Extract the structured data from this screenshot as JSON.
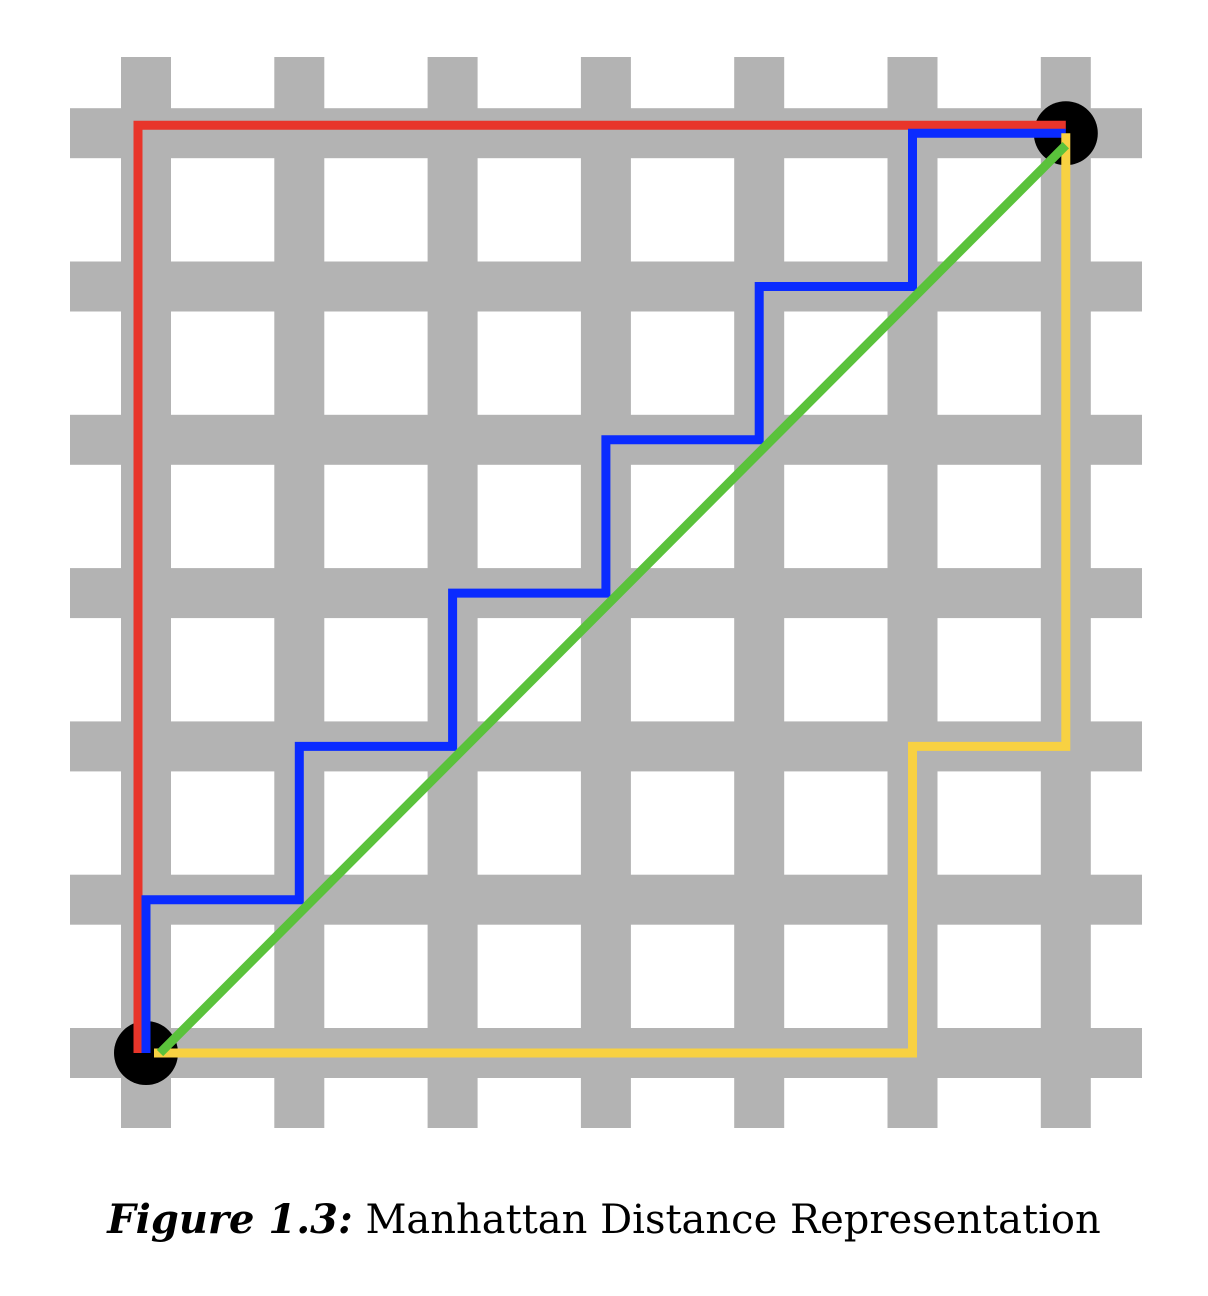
{
  "grid": {
    "lines": 7,
    "street_color": "#b3b3b3",
    "block_color": "#ffffff"
  },
  "endpoints": [
    {
      "name": "start",
      "col": 0,
      "row": 0
    },
    {
      "name": "end",
      "col": 6,
      "row": 6
    }
  ],
  "paths": [
    {
      "id": "red",
      "color": "#e8352a",
      "points": [
        [
          0,
          0
        ],
        [
          0,
          6
        ],
        [
          6,
          6
        ]
      ]
    },
    {
      "id": "blue",
      "color": "#0a2bff",
      "points": [
        [
          0,
          0
        ],
        [
          0,
          1
        ],
        [
          1,
          1
        ],
        [
          1,
          2
        ],
        [
          2,
          2
        ],
        [
          2,
          3
        ],
        [
          3,
          3
        ],
        [
          3,
          4
        ],
        [
          4,
          4
        ],
        [
          4,
          5
        ],
        [
          5,
          5
        ],
        [
          5,
          6
        ],
        [
          6,
          6
        ]
      ]
    },
    {
      "id": "yellow",
      "color": "#f8d142",
      "points": [
        [
          0,
          0
        ],
        [
          5,
          0
        ],
        [
          5,
          2
        ],
        [
          6,
          2
        ],
        [
          6,
          6
        ]
      ]
    },
    {
      "id": "green",
      "color": "#5ac23b",
      "points": [
        [
          0,
          0
        ],
        [
          6,
          6
        ]
      ]
    }
  ],
  "caption": {
    "label": "Figure 1.3:",
    "text": "Manhattan Distance Representation"
  }
}
